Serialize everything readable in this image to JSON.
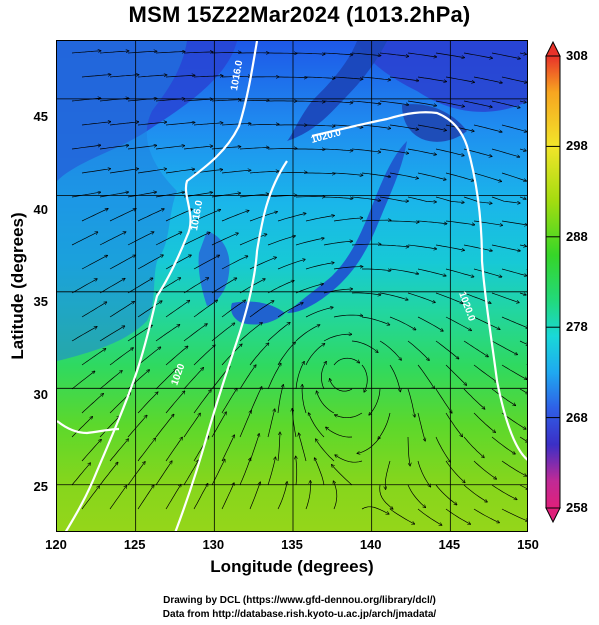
{
  "title": "MSM 15Z22Mar2024 (1013.2hPa)",
  "x_axis": {
    "label": "Longitude (degrees)",
    "ticks": [
      "120",
      "125",
      "130",
      "135",
      "140",
      "145",
      "150"
    ],
    "range": [
      120,
      150
    ]
  },
  "y_axis": {
    "label": "Latitude  (degrees)",
    "ticks": [
      "25",
      "30",
      "35",
      "40",
      "45"
    ],
    "range": [
      22.5,
      48
    ]
  },
  "colorbar": {
    "ticks": [
      "308",
      "298",
      "288",
      "278",
      "268",
      "258"
    ],
    "range": [
      258,
      308
    ],
    "colors": [
      "#e0207a",
      "#c02a96",
      "#3b2fc6",
      "#2f5fe6",
      "#1fa9f0",
      "#19d8d8",
      "#22d97a",
      "#36d628",
      "#a4dc10",
      "#f2e52a",
      "#f7a520",
      "#e8322a"
    ]
  },
  "contour_labels": [
    "1016.0",
    "1020.0",
    "1020.0",
    "1020",
    "1016.0"
  ],
  "footer": {
    "line1": "Drawing by DCL (https://www.gfd-dennou.org/library/dcl/)",
    "line2": "Data from http://database.rish.kyoto-u.ac.jp/arch/jmadata/"
  },
  "colors": {
    "land": "#1a40a8",
    "contour": "#ffffff",
    "coast": "#000000"
  }
}
